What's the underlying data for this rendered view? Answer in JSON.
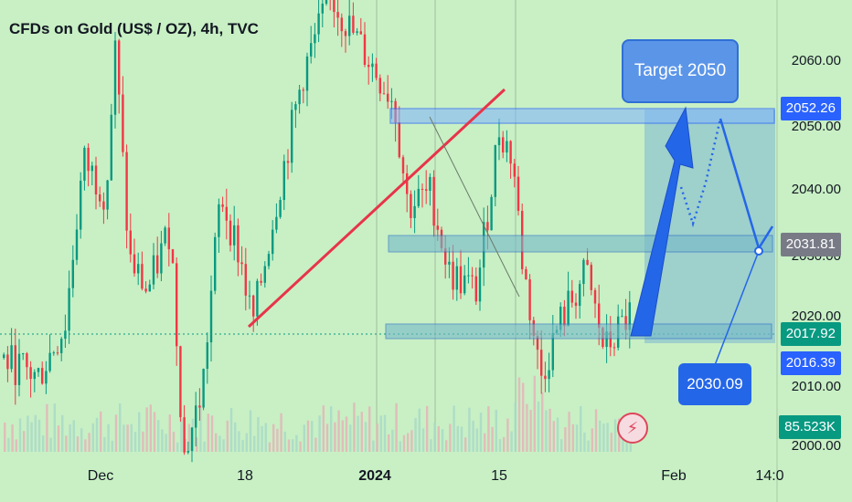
{
  "header": {
    "title": "CFDs on Gold (US$ / OZ), 4h, TVC"
  },
  "price_scale": {
    "labels": [
      "2060.00",
      "2050.00",
      "2040.00",
      "2030.00",
      "2020.00",
      "2010.00",
      "2000.00"
    ]
  },
  "price_tags": {
    "resistance": {
      "value": "2052.26",
      "color": "#2962ff"
    },
    "mid": {
      "value": "2031.81",
      "color": "#787b86"
    },
    "last": {
      "value": "2017.92",
      "color": "#089981"
    },
    "support": {
      "value": "2016.39",
      "color": "#2962ff"
    },
    "volume": {
      "value": "85.523K",
      "color": "#089981"
    }
  },
  "time_axis": {
    "labels": [
      "Dec",
      "18",
      "2024",
      "15",
      "Feb",
      "14:0"
    ]
  },
  "annotations": {
    "target": "Target 2050",
    "callout_value": "2030.09"
  },
  "icons": {
    "alert": "lightning-alert-icon"
  },
  "chart_data": {
    "type": "candlestick",
    "title": "CFDs on Gold (US$ / OZ), 4h, TVC",
    "y_range": [
      2000,
      2065
    ],
    "y_ticks": [
      2000,
      2010,
      2020,
      2030,
      2040,
      2050,
      2060
    ],
    "x_ticks": [
      "Dec",
      "18",
      "2024",
      "15",
      "Feb",
      "14:0"
    ],
    "zones": [
      {
        "name": "resistance",
        "from": 2050.8,
        "to": 2052.3
      },
      {
        "name": "middle",
        "from": 2030.8,
        "to": 2032.3
      },
      {
        "name": "support",
        "from": 2017.6,
        "to": 2018.8
      }
    ],
    "price_levels": [
      2052.26,
      2031.81,
      2017.92,
      2016.39,
      2030.09
    ],
    "target": 2050,
    "volume_last": "85.523K",
    "colors": {
      "up": "#089981",
      "down": "#f23645",
      "zone": "#2962ff",
      "trend": "#e8344a"
    }
  }
}
